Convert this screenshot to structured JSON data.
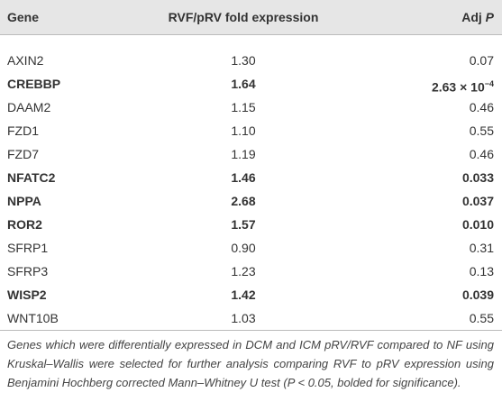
{
  "table": {
    "header": [
      "Gene",
      "RVF/pRV fold expression",
      {
        "text": "Adj",
        "italic": "P"
      }
    ],
    "rows": [
      {
        "cells": [
          "AXIN2",
          "1.30",
          "0.07"
        ],
        "bold": false
      },
      {
        "cells": [
          "CREBBP",
          "1.64",
          {
            "text": "2.63 × 10",
            "sup": "−4"
          }
        ],
        "bold": true
      },
      {
        "cells": [
          "DAAM2",
          "1.15",
          "0.46"
        ],
        "bold": false
      },
      {
        "cells": [
          "FZD1",
          "1.10",
          "0.55"
        ],
        "bold": false
      },
      {
        "cells": [
          "FZD7",
          "1.19",
          "0.46"
        ],
        "bold": false
      },
      {
        "cells": [
          "NFATC2",
          "1.46",
          "0.033"
        ],
        "bold": true
      },
      {
        "cells": [
          "NPPA",
          "2.68",
          "0.037"
        ],
        "bold": true
      },
      {
        "cells": [
          "ROR2",
          "1.57",
          "0.010"
        ],
        "bold": true
      },
      {
        "cells": [
          "SFRP1",
          "0.90",
          "0.31"
        ],
        "bold": false
      },
      {
        "cells": [
          "SFRP3",
          "1.23",
          "0.13"
        ],
        "bold": false
      },
      {
        "cells": [
          "WISP2",
          "1.42",
          "0.039"
        ],
        "bold": true
      },
      {
        "cells": [
          "WNT10B",
          "1.03",
          "0.55"
        ],
        "bold": false
      }
    ]
  },
  "note": "Genes which were differentially expressed in DCM and ICM pRV/RVF compared to NF using Kruskal–Wallis were selected for further analysis comparing RVF to pRV expression using Benjamini Hochberg corrected Mann–Whitney U test (P < 0.05, bolded for significance)."
}
